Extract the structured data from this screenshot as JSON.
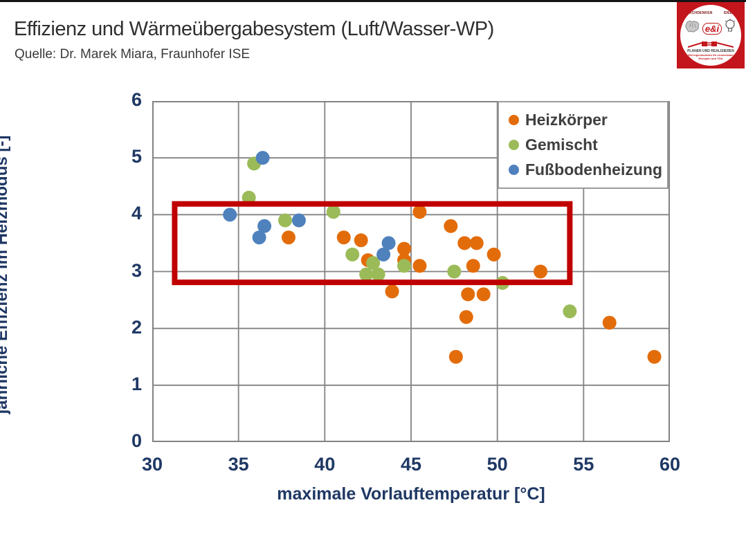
{
  "page": {
    "title": "Effizienz und Wärmeübergabesystem (Luft/Wasser-WP)",
    "subtitle": "Quelle: Dr. Marek Miara, Fraunhofer ISE"
  },
  "logo": {
    "top_left_text": "NACHDENKEN",
    "top_right_text": "IDEEN",
    "brand": "e&i",
    "bottom_line1": "PLANEN UND REALISIEREN",
    "bottom_line2": "E&I Ingenieurbüro für erneuerbare",
    "bottom_line3": "Energien und TGA",
    "bg_color": "#c3161c"
  },
  "chart_data": {
    "type": "scatter",
    "title": "",
    "xlabel": "maximale Vorlauftemperatur [°C]",
    "ylabel": "jährliche Effizienz im Heizmodus [-]",
    "xlim": [
      30,
      60
    ],
    "ylim": [
      0,
      6
    ],
    "xticks": [
      30,
      35,
      40,
      45,
      50,
      55,
      60
    ],
    "yticks": [
      0,
      1,
      2,
      3,
      4,
      5,
      6
    ],
    "grid": true,
    "grid_color": "#828282",
    "legend_position": "top-right-inside",
    "series": [
      {
        "name": "Heizkörper",
        "color": "#e36c0a",
        "points": [
          [
            37.9,
            3.6
          ],
          [
            41.1,
            3.6
          ],
          [
            42.1,
            3.55
          ],
          [
            42.5,
            3.2
          ],
          [
            44.6,
            3.4
          ],
          [
            44.6,
            3.2
          ],
          [
            45.5,
            4.05
          ],
          [
            45.5,
            3.1
          ],
          [
            43.9,
            2.65
          ],
          [
            47.3,
            3.8
          ],
          [
            48.1,
            3.5
          ],
          [
            48.8,
            3.5
          ],
          [
            49.8,
            3.3
          ],
          [
            48.6,
            3.1
          ],
          [
            52.5,
            3.0
          ],
          [
            48.3,
            2.6
          ],
          [
            49.2,
            2.6
          ],
          [
            48.2,
            2.2
          ],
          [
            56.5,
            2.1
          ],
          [
            47.6,
            1.5
          ],
          [
            59.1,
            1.5
          ]
        ]
      },
      {
        "name": "Gemischt",
        "color": "#9bbb59",
        "points": [
          [
            35.9,
            4.9
          ],
          [
            35.6,
            4.3
          ],
          [
            37.7,
            3.9
          ],
          [
            40.5,
            4.05
          ],
          [
            41.6,
            3.3
          ],
          [
            42.8,
            3.15
          ],
          [
            42.4,
            2.95
          ],
          [
            43.1,
            2.95
          ],
          [
            44.6,
            3.1
          ],
          [
            47.5,
            3.0
          ],
          [
            50.3,
            2.8
          ],
          [
            54.2,
            2.3
          ]
        ]
      },
      {
        "name": "Fußbodenheizung",
        "color": "#4f81bd",
        "points": [
          [
            34.5,
            4.0
          ],
          [
            36.4,
            5.0
          ],
          [
            36.5,
            3.8
          ],
          [
            36.2,
            3.6
          ],
          [
            38.5,
            3.9
          ],
          [
            43.7,
            3.5
          ],
          [
            43.4,
            3.3
          ]
        ]
      }
    ],
    "annotation_box": {
      "x0": 31.3,
      "y0": 2.81,
      "x1": 54.2,
      "y1": 4.19,
      "color": "#c00000"
    }
  }
}
